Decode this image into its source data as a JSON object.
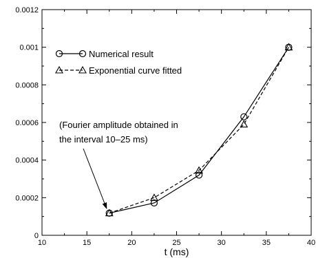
{
  "chart_data": {
    "type": "line",
    "title": "",
    "xlabel": "t (ms)",
    "ylabel": "",
    "xlim": [
      10,
      40
    ],
    "ylim": [
      0,
      0.0012
    ],
    "x_ticks": [
      10,
      15,
      20,
      25,
      30,
      35,
      40
    ],
    "x_tick_labels": [
      "10",
      "15",
      "20",
      "25",
      "30",
      "35",
      "40"
    ],
    "y_ticks": [
      0,
      0.0002,
      0.0004,
      0.0006,
      0.0008,
      0.001,
      0.0012
    ],
    "y_tick_labels": [
      "0",
      "0.0002",
      "0.0004",
      "0.0006",
      "0.0008",
      "0.001",
      "0.0012"
    ],
    "grid": false,
    "legend_position": "top-left",
    "series": [
      {
        "name": "Numerical result",
        "marker": "circle",
        "line_style": "solid",
        "x": [
          17.5,
          22.5,
          27.5,
          32.5,
          37.5
        ],
        "y": [
          0.000118,
          0.000172,
          0.00032,
          0.00063,
          0.001
        ]
      },
      {
        "name": "Exponential curve fitted",
        "marker": "triangle",
        "line_style": "dashed",
        "x": [
          17.5,
          22.5,
          27.5,
          32.5,
          37.5
        ],
        "y": [
          0.000118,
          0.0002,
          0.000345,
          0.00059,
          0.001
        ]
      }
    ],
    "annotation": {
      "lines": [
        "(Fourier amplitude obtained in",
        "the interval 10–25 ms)"
      ],
      "x": 17.5,
      "y": 0.000118
    }
  }
}
